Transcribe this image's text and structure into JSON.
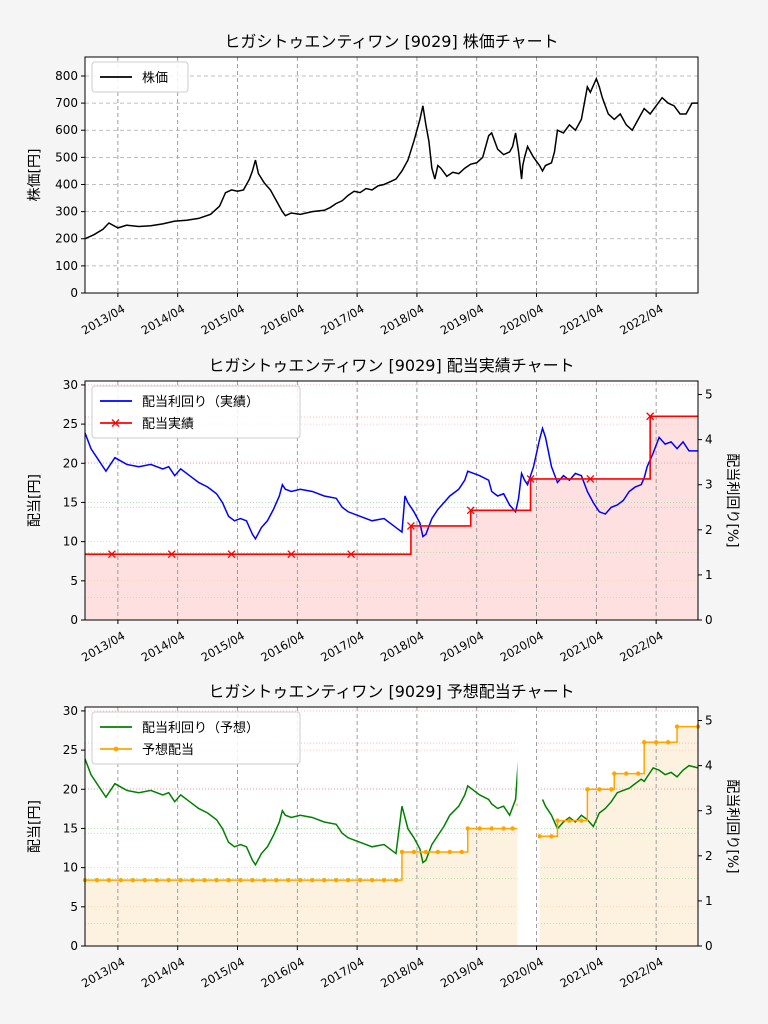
{
  "x_ticks": [
    "2013/04",
    "2014/04",
    "2015/04",
    "2016/04",
    "2017/04",
    "2018/04",
    "2019/04",
    "2020/04",
    "2021/04",
    "2022/04"
  ],
  "chart_data": [
    {
      "type": "line",
      "title": "ヒガシトゥエンティワン [9029]  株価チャート",
      "xlabel": "",
      "ylabel": "株価[円]",
      "xlim": [
        2012.7,
        2022.95
      ],
      "ylim": [
        0,
        870
      ],
      "yticks": [
        "0",
        "100",
        "200",
        "300",
        "400",
        "500",
        "600",
        "700",
        "800"
      ],
      "grid": true,
      "legend": {
        "placement": "top-left",
        "entries": [
          "株価"
        ]
      },
      "series": [
        {
          "name": "株価",
          "color": "#000000",
          "x": [
            2012.7,
            2012.85,
            2013.0,
            2013.1,
            2013.25,
            2013.4,
            2013.6,
            2013.8,
            2014.0,
            2014.2,
            2014.4,
            2014.6,
            2014.8,
            2014.95,
            2015.05,
            2015.15,
            2015.25,
            2015.35,
            2015.45,
            2015.5,
            2015.55,
            2015.6,
            2015.7,
            2015.8,
            2015.9,
            2016.0,
            2016.05,
            2016.15,
            2016.3,
            2016.5,
            2016.7,
            2016.8,
            2016.9,
            2017.0,
            2017.1,
            2017.2,
            2017.3,
            2017.4,
            2017.5,
            2017.6,
            2017.7,
            2017.8,
            2017.9,
            2018.0,
            2018.1,
            2018.2,
            2018.3,
            2018.35,
            2018.4,
            2018.45,
            2018.5,
            2018.55,
            2018.6,
            2018.65,
            2018.75,
            2018.85,
            2018.95,
            2019.05,
            2019.15,
            2019.25,
            2019.35,
            2019.45,
            2019.5,
            2019.6,
            2019.7,
            2019.8,
            2019.85,
            2019.9,
            2019.95,
            2020.0,
            2020.02,
            2020.05,
            2020.1,
            2020.2,
            2020.3,
            2020.35,
            2020.4,
            2020.5,
            2020.55,
            2020.6,
            2020.7,
            2020.8,
            2020.9,
            2021.0,
            2021.05,
            2021.1,
            2021.15,
            2021.25,
            2021.3,
            2021.35,
            2021.45,
            2021.55,
            2021.65,
            2021.75,
            2021.85,
            2021.95,
            2022.05,
            2022.15,
            2022.25,
            2022.35,
            2022.45,
            2022.55,
            2022.65,
            2022.75,
            2022.85,
            2022.95
          ],
          "y": [
            200,
            215,
            235,
            258,
            240,
            250,
            245,
            248,
            255,
            265,
            268,
            275,
            290,
            320,
            370,
            380,
            375,
            380,
            420,
            450,
            490,
            440,
            405,
            380,
            340,
            300,
            285,
            295,
            290,
            300,
            305,
            315,
            330,
            340,
            360,
            375,
            370,
            385,
            380,
            395,
            400,
            410,
            420,
            450,
            490,
            560,
            640,
            690,
            620,
            560,
            460,
            420,
            470,
            460,
            430,
            445,
            440,
            460,
            475,
            480,
            500,
            580,
            590,
            530,
            510,
            520,
            540,
            590,
            520,
            420,
            470,
            500,
            540,
            500,
            470,
            450,
            470,
            480,
            520,
            600,
            590,
            620,
            600,
            640,
            700,
            760,
            740,
            790,
            760,
            720,
            660,
            640,
            660,
            620,
            600,
            640,
            680,
            660,
            690,
            720,
            700,
            690,
            660,
            660,
            700,
            700
          ]
        }
      ]
    },
    {
      "type": "line",
      "title": "ヒガシトゥエンティワン [9029]  配当実績チャート",
      "xlabel": "",
      "ylabel": "配当[円]",
      "ylabel_right": "配当利回り[%]",
      "xlim": [
        2012.7,
        2022.95
      ],
      "ylim": [
        0,
        30.5
      ],
      "ylim_right": [
        0,
        5.3
      ],
      "yticks": [
        "0",
        "5",
        "10",
        "15",
        "20",
        "25",
        "30"
      ],
      "yticks_right": [
        "0",
        "1",
        "2",
        "3",
        "4",
        "5"
      ],
      "grid": true,
      "legend": {
        "placement": "top-left",
        "entries": [
          "配当利回り（実績）",
          "配当実績"
        ]
      },
      "series": [
        {
          "name": "配当利回り（実績）",
          "axis": "right",
          "color": "#0000ff",
          "x": [
            2012.7,
            2012.8,
            2012.95,
            2013.05,
            2013.2,
            2013.4,
            2013.6,
            2013.8,
            2014.0,
            2014.1,
            2014.2,
            2014.3,
            2014.45,
            2014.6,
            2014.75,
            2014.9,
            2015.0,
            2015.1,
            2015.2,
            2015.3,
            2015.4,
            2015.5,
            2015.55,
            2015.65,
            2015.75,
            2015.85,
            2015.95,
            2016.0,
            2016.05,
            2016.15,
            2016.3,
            2016.5,
            2016.7,
            2016.9,
            2017.0,
            2017.1,
            2017.3,
            2017.5,
            2017.7,
            2017.9,
            2018.0,
            2018.05,
            2018.1,
            2018.2,
            2018.3,
            2018.35,
            2018.4,
            2018.5,
            2018.6,
            2018.7,
            2018.8,
            2018.95,
            2019.05,
            2019.1,
            2019.2,
            2019.3,
            2019.45,
            2019.5,
            2019.6,
            2019.7,
            2019.8,
            2019.9,
            2019.95,
            2020.0,
            2020.05,
            2020.1,
            2020.2,
            2020.3,
            2020.35,
            2020.4,
            2020.5,
            2020.6,
            2020.7,
            2020.8,
            2020.9,
            2021.0,
            2021.1,
            2021.2,
            2021.3,
            2021.4,
            2021.5,
            2021.6,
            2021.7,
            2021.8,
            2021.9,
            2022.0,
            2022.05,
            2022.1,
            2022.2,
            2022.3,
            2022.4,
            2022.5,
            2022.6,
            2022.7,
            2022.8,
            2022.95
          ],
          "y": [
            4.15,
            3.8,
            3.5,
            3.3,
            3.6,
            3.45,
            3.4,
            3.45,
            3.35,
            3.4,
            3.2,
            3.35,
            3.2,
            3.05,
            2.95,
            2.8,
            2.6,
            2.3,
            2.2,
            2.25,
            2.2,
            1.9,
            1.8,
            2.05,
            2.2,
            2.45,
            2.75,
            3.0,
            2.9,
            2.85,
            2.9,
            2.85,
            2.75,
            2.7,
            2.5,
            2.4,
            2.3,
            2.2,
            2.25,
            2.05,
            1.95,
            2.75,
            2.6,
            2.4,
            2.15,
            1.85,
            1.9,
            2.25,
            2.45,
            2.6,
            2.75,
            2.9,
            3.1,
            3.3,
            3.25,
            3.2,
            3.1,
            2.85,
            2.75,
            2.8,
            2.55,
            2.4,
            2.7,
            3.25,
            3.1,
            3.0,
            3.4,
            4.0,
            4.25,
            4.05,
            3.4,
            3.05,
            3.2,
            3.1,
            3.25,
            3.2,
            2.85,
            2.6,
            2.4,
            2.35,
            2.5,
            2.55,
            2.65,
            2.85,
            2.95,
            3.0,
            3.15,
            3.4,
            3.7,
            4.05,
            3.9,
            3.95,
            3.8,
            3.95,
            3.75,
            3.75
          ]
        },
        {
          "name": "配当実績",
          "axis": "left",
          "color": "#ff0000",
          "step_x": [
            2012.7,
            2018.15,
            2019.15,
            2020.15,
            2022.15,
            2022.95
          ],
          "step_y": [
            8.4,
            12.0,
            14.0,
            18.0,
            26.0,
            26.0
          ],
          "markers_x": [
            2013.15,
            2014.15,
            2015.15,
            2016.15,
            2017.15,
            2018.15,
            2019.15,
            2020.15,
            2021.15,
            2022.15
          ],
          "markers_y": [
            8.4,
            8.4,
            8.4,
            8.4,
            8.4,
            12.0,
            14.0,
            18.0,
            18.0,
            26.0
          ],
          "fill": "#ffe0e0"
        }
      ]
    },
    {
      "type": "line",
      "title": "ヒガシトゥエンティワン [9029]  予想配当チャート",
      "xlabel": "",
      "ylabel": "配当[円]",
      "ylabel_right": "配当利回り[%]",
      "xlim": [
        2012.7,
        2022.95
      ],
      "ylim": [
        0,
        30.5
      ],
      "ylim_right": [
        0,
        5.3
      ],
      "yticks": [
        "0",
        "5",
        "10",
        "15",
        "20",
        "25",
        "30"
      ],
      "yticks_right": [
        "0",
        "1",
        "2",
        "3",
        "4",
        "5"
      ],
      "grid": true,
      "legend": {
        "placement": "top-left",
        "entries": [
          "配当利回り（予想）",
          "予想配当"
        ]
      },
      "series": [
        {
          "name": "配当利回り（予想）",
          "axis": "right",
          "color": "#008000",
          "segments": [
            {
              "x": [
                2012.7,
                2012.8,
                2012.95,
                2013.05,
                2013.2,
                2013.4,
                2013.6,
                2013.8,
                2014.0,
                2014.1,
                2014.2,
                2014.3,
                2014.45,
                2014.6,
                2014.75,
                2014.9,
                2015.0,
                2015.1,
                2015.2,
                2015.3,
                2015.4,
                2015.5,
                2015.55,
                2015.65,
                2015.75,
                2015.85,
                2015.95,
                2016.0,
                2016.05,
                2016.15,
                2016.3,
                2016.5,
                2016.7,
                2016.9,
                2017.0,
                2017.1,
                2017.3,
                2017.5,
                2017.7,
                2017.9,
                2018.0,
                2018.05,
                2018.1,
                2018.2,
                2018.3,
                2018.35,
                2018.4,
                2018.5,
                2018.6,
                2018.7,
                2018.8,
                2018.95,
                2019.05,
                2019.1,
                2019.2,
                2019.3,
                2019.45,
                2019.5,
                2019.6,
                2019.7,
                2019.8,
                2019.9,
                2019.95,
                2020.0,
                2020.05,
                2020.1
              ],
              "y": [
                4.15,
                3.8,
                3.5,
                3.3,
                3.6,
                3.45,
                3.4,
                3.45,
                3.35,
                3.4,
                3.2,
                3.35,
                3.2,
                3.05,
                2.95,
                2.8,
                2.6,
                2.3,
                2.2,
                2.25,
                2.2,
                1.9,
                1.8,
                2.05,
                2.2,
                2.45,
                2.75,
                3.0,
                2.9,
                2.85,
                2.9,
                2.85,
                2.75,
                2.7,
                2.5,
                2.4,
                2.3,
                2.2,
                2.25,
                2.05,
                3.1,
                2.85,
                2.6,
                2.4,
                2.15,
                1.85,
                1.9,
                2.25,
                2.45,
                2.65,
                2.9,
                3.1,
                3.35,
                3.55,
                3.45,
                3.35,
                3.25,
                3.15,
                3.05,
                3.1,
                2.9,
                3.25,
                4.2,
                3.7,
                3.6,
                3.45
              ]
            },
            {
              "x": [
                2020.35,
                2020.4,
                2020.5,
                2020.6,
                2020.7,
                2020.8,
                2020.9,
                2021.0,
                2021.1,
                2021.2,
                2021.3,
                2021.4,
                2021.5,
                2021.6,
                2021.7,
                2021.8,
                2021.9,
                2022.0,
                2022.05,
                2022.1,
                2022.2,
                2022.3,
                2022.4,
                2022.5,
                2022.6,
                2022.7,
                2022.8,
                2022.95
              ],
              "y": [
                3.25,
                3.1,
                2.9,
                2.6,
                2.75,
                2.85,
                2.75,
                2.9,
                2.8,
                2.65,
                2.95,
                3.05,
                3.2,
                3.4,
                3.45,
                3.5,
                3.6,
                3.7,
                3.65,
                3.75,
                3.95,
                3.9,
                3.8,
                3.85,
                3.75,
                3.9,
                4.0,
                3.95
              ]
            }
          ]
        },
        {
          "name": "予想配当",
          "axis": "left",
          "color": "#ffa500",
          "segments": [
            {
              "x": [
                2012.7,
                2012.9,
                2013.1,
                2013.3,
                2013.5,
                2013.7,
                2013.9,
                2014.1,
                2014.3,
                2014.5,
                2014.7,
                2014.9,
                2015.1,
                2015.3,
                2015.5,
                2015.7,
                2015.9,
                2016.1,
                2016.3,
                2016.5,
                2016.7,
                2016.9,
                2017.1,
                2017.3,
                2017.5,
                2017.7,
                2017.9,
                2018.0,
                2018.2,
                2018.4,
                2018.6,
                2018.8,
                2019.0,
                2019.1,
                2019.3,
                2019.5,
                2019.7,
                2019.85,
                2019.95,
                2020.1
              ],
              "y": [
                8.4,
                8.4,
                8.4,
                8.4,
                8.4,
                8.4,
                8.4,
                8.4,
                8.4,
                8.4,
                8.4,
                8.4,
                8.4,
                8.4,
                8.4,
                8.4,
                8.4,
                8.4,
                8.4,
                8.4,
                8.4,
                8.4,
                8.4,
                8.4,
                8.4,
                8.4,
                8.4,
                12.0,
                12.0,
                12.0,
                12.0,
                12.0,
                12.0,
                15.0,
                15.0,
                15.0,
                15.0,
                15.0,
                18.0,
                18.0
              ]
            },
            {
              "x": [
                2020.3,
                2020.5,
                2020.6,
                2020.8,
                2021.0,
                2021.1,
                2021.3,
                2021.5,
                2021.55,
                2021.75,
                2021.95,
                2022.05,
                2022.25,
                2022.45,
                2022.6,
                2022.95
              ],
              "y": [
                14.0,
                14.0,
                16.0,
                16.0,
                16.0,
                20.0,
                20.0,
                20.0,
                22.0,
                22.0,
                22.0,
                26.0,
                26.0,
                26.0,
                28.0,
                28.0
              ]
            }
          ],
          "fill": "#fdf2e0"
        }
      ]
    }
  ]
}
